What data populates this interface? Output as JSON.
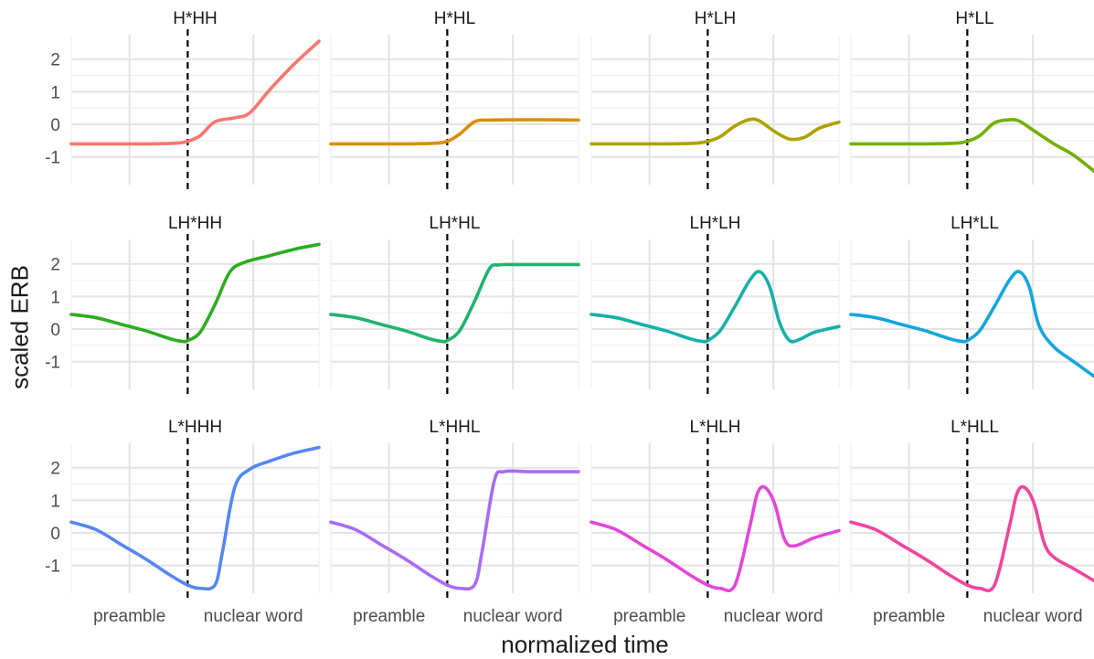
{
  "chart_data": {
    "type": "line",
    "layout": "facet-grid 3x4",
    "xlabel": "normalized time",
    "ylabel": "scaled ERB",
    "x_ticks": [
      "preamble",
      "nuclear word"
    ],
    "y_ticks": [
      -1,
      0,
      1,
      2
    ],
    "x_range": [
      0,
      1
    ],
    "y_range": [
      -1.85,
      2.75
    ],
    "vline_x": 0.47,
    "vline_style": "dashed",
    "grid": true,
    "legend": "none",
    "panels": [
      {
        "title": "H*HH",
        "color": "#F8766D",
        "x": [
          0,
          0.15,
          0.3,
          0.42,
          0.47,
          0.52,
          0.58,
          0.66,
          0.72,
          0.8,
          0.9,
          1.0
        ],
        "y": [
          -0.6,
          -0.6,
          -0.6,
          -0.58,
          -0.52,
          -0.35,
          0.08,
          0.2,
          0.35,
          1.05,
          1.85,
          2.55
        ]
      },
      {
        "title": "H*HL",
        "color": "#D98E0A",
        "x": [
          0,
          0.15,
          0.3,
          0.42,
          0.47,
          0.52,
          0.58,
          0.64,
          0.75,
          0.9,
          1.0
        ],
        "y": [
          -0.6,
          -0.6,
          -0.6,
          -0.58,
          -0.52,
          -0.3,
          0.08,
          0.13,
          0.14,
          0.14,
          0.13
        ]
      },
      {
        "title": "H*LH",
        "color": "#AFA100",
        "x": [
          0,
          0.15,
          0.3,
          0.42,
          0.47,
          0.52,
          0.58,
          0.64,
          0.68,
          0.74,
          0.8,
          0.86,
          0.92,
          1.0
        ],
        "y": [
          -0.6,
          -0.6,
          -0.6,
          -0.58,
          -0.52,
          -0.38,
          -0.05,
          0.15,
          0.1,
          -0.22,
          -0.45,
          -0.4,
          -0.12,
          0.07
        ]
      },
      {
        "title": "H*LL",
        "color": "#72B000",
        "x": [
          0,
          0.15,
          0.3,
          0.42,
          0.47,
          0.52,
          0.58,
          0.64,
          0.68,
          0.74,
          0.82,
          0.9,
          1.0
        ],
        "y": [
          -0.6,
          -0.6,
          -0.6,
          -0.58,
          -0.52,
          -0.35,
          0.05,
          0.14,
          0.1,
          -0.2,
          -0.6,
          -0.95,
          -1.55
        ]
      },
      {
        "title": "LH*HH",
        "color": "#2CAD1F",
        "x": [
          0,
          0.1,
          0.2,
          0.3,
          0.4,
          0.45,
          0.47,
          0.52,
          0.58,
          0.64,
          0.7,
          0.8,
          0.9,
          1.0
        ],
        "y": [
          0.45,
          0.35,
          0.15,
          -0.05,
          -0.3,
          -0.38,
          -0.35,
          -0.1,
          0.75,
          1.75,
          2.05,
          2.25,
          2.45,
          2.6
        ]
      },
      {
        "title": "LH*HL",
        "color": "#1FB36B",
        "x": [
          0,
          0.1,
          0.2,
          0.3,
          0.4,
          0.45,
          0.47,
          0.52,
          0.58,
          0.64,
          0.68,
          0.75,
          0.9,
          1.0
        ],
        "y": [
          0.45,
          0.35,
          0.15,
          -0.05,
          -0.3,
          -0.38,
          -0.35,
          -0.05,
          0.85,
          1.85,
          1.97,
          1.98,
          1.98,
          1.98
        ]
      },
      {
        "title": "LH*LH",
        "color": "#16B0A8",
        "x": [
          0,
          0.1,
          0.2,
          0.3,
          0.4,
          0.45,
          0.47,
          0.52,
          0.58,
          0.64,
          0.68,
          0.72,
          0.76,
          0.8,
          0.84,
          0.9,
          1.0
        ],
        "y": [
          0.45,
          0.35,
          0.15,
          -0.05,
          -0.3,
          -0.38,
          -0.35,
          -0.05,
          0.7,
          1.5,
          1.76,
          1.3,
          0.2,
          -0.35,
          -0.32,
          -0.1,
          0.08
        ]
      },
      {
        "title": "LH*LL",
        "color": "#14A6DD",
        "x": [
          0,
          0.1,
          0.2,
          0.3,
          0.4,
          0.45,
          0.47,
          0.52,
          0.58,
          0.64,
          0.68,
          0.72,
          0.76,
          0.82,
          0.9,
          1.0
        ],
        "y": [
          0.45,
          0.35,
          0.15,
          -0.05,
          -0.3,
          -0.38,
          -0.35,
          -0.05,
          0.7,
          1.5,
          1.76,
          1.3,
          0.1,
          -0.55,
          -1.0,
          -1.55
        ]
      },
      {
        "title": "L*HHH",
        "color": "#5487F3",
        "x": [
          0,
          0.1,
          0.2,
          0.3,
          0.4,
          0.47,
          0.52,
          0.58,
          0.61,
          0.66,
          0.72,
          0.8,
          0.9,
          1.0
        ],
        "y": [
          0.33,
          0.1,
          -0.35,
          -0.8,
          -1.3,
          -1.6,
          -1.7,
          -1.6,
          -0.6,
          1.4,
          1.95,
          2.2,
          2.45,
          2.62
        ]
      },
      {
        "title": "L*HHL",
        "color": "#A86BF5",
        "x": [
          0,
          0.1,
          0.2,
          0.3,
          0.4,
          0.47,
          0.52,
          0.58,
          0.61,
          0.66,
          0.7,
          0.8,
          0.9,
          1.0
        ],
        "y": [
          0.33,
          0.1,
          -0.35,
          -0.8,
          -1.3,
          -1.6,
          -1.7,
          -1.6,
          -0.6,
          1.6,
          1.88,
          1.88,
          1.88,
          1.88
        ]
      },
      {
        "title": "L*HLH",
        "color": "#E446D9",
        "x": [
          0,
          0.1,
          0.2,
          0.3,
          0.4,
          0.47,
          0.52,
          0.58,
          0.64,
          0.67,
          0.7,
          0.74,
          0.78,
          0.82,
          0.9,
          1.0
        ],
        "y": [
          0.33,
          0.1,
          -0.35,
          -0.8,
          -1.3,
          -1.6,
          -1.7,
          -1.6,
          0.2,
          1.2,
          1.4,
          0.9,
          -0.2,
          -0.4,
          -0.15,
          0.07
        ]
      },
      {
        "title": "L*HLL",
        "color": "#F0459E",
        "x": [
          0,
          0.1,
          0.2,
          0.3,
          0.4,
          0.47,
          0.52,
          0.58,
          0.64,
          0.67,
          0.7,
          0.74,
          0.78,
          0.82,
          0.9,
          1.0
        ],
        "y": [
          0.33,
          0.1,
          -0.35,
          -0.8,
          -1.3,
          -1.6,
          -1.7,
          -1.6,
          0.2,
          1.2,
          1.4,
          0.9,
          -0.3,
          -0.75,
          -1.1,
          -1.55
        ]
      }
    ]
  }
}
